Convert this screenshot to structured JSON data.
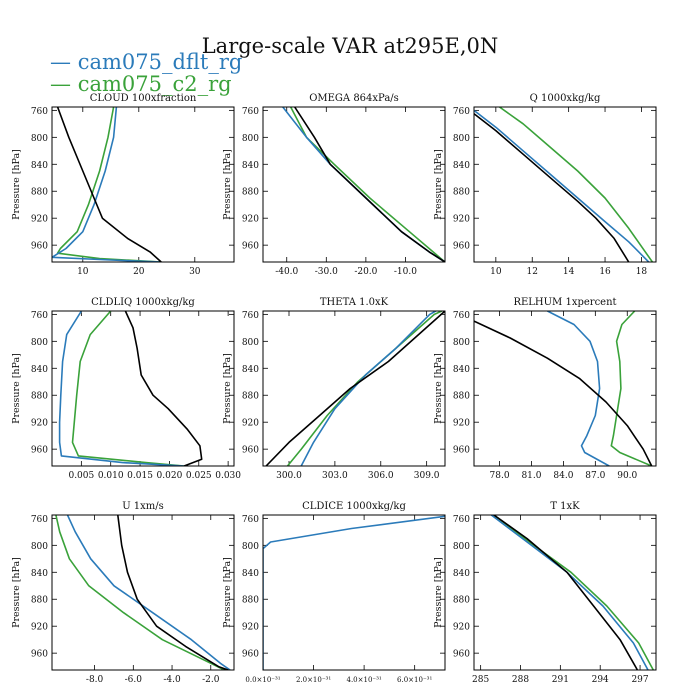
{
  "title": "Large-scale VAR at295E,0N",
  "legend": [
    {
      "label": "cam075_dflt_rg",
      "color": "#2b7bba"
    },
    {
      "label": "cam075_c2_rg",
      "color": "#3aa23a"
    }
  ],
  "colors": {
    "black": "#000000",
    "blue": "#2b7bba",
    "green": "#3aa23a"
  },
  "ylabel": "Pressure [hPa]",
  "pressure_ticks": [
    "760",
    "800",
    "840",
    "880",
    "920",
    "960"
  ],
  "chart_data": [
    {
      "type": "line",
      "title": "CLOUD  100xfraction",
      "xlim": [
        4.5,
        37
      ],
      "ylim": [
        985,
        755
      ],
      "xticks": [
        10,
        20,
        30
      ],
      "xtick_labels": [
        "10",
        "20",
        "30"
      ],
      "series": [
        {
          "name": "black",
          "x": [
            5.5,
            7.5,
            10,
            12,
            13.5,
            18,
            22,
            24
          ],
          "y": [
            755,
            800,
            850,
            890,
            920,
            950,
            970,
            985
          ]
        },
        {
          "name": "cam075_dflt_rg",
          "x": [
            16,
            15.5,
            14,
            12,
            10,
            7,
            4.5,
            15,
            24
          ],
          "y": [
            755,
            800,
            850,
            900,
            940,
            965,
            978,
            982,
            985
          ]
        },
        {
          "name": "cam075_c2_rg",
          "x": [
            15.5,
            14.5,
            13,
            11,
            9,
            6,
            5.5,
            13,
            24
          ],
          "y": [
            755,
            800,
            850,
            900,
            940,
            965,
            972,
            980,
            985
          ]
        }
      ]
    },
    {
      "type": "line",
      "title": "OMEGA  864xPa/s",
      "xlim": [
        -46,
        0
      ],
      "ylim": [
        985,
        755
      ],
      "xticks": [
        -40,
        -30,
        -20,
        -10
      ],
      "xtick_labels": [
        "-40.0",
        "-30.0",
        "-20.0",
        "-10.0"
      ],
      "series": [
        {
          "name": "black",
          "x": [
            -38,
            -33,
            -29,
            -20,
            -11,
            -4,
            0
          ],
          "y": [
            755,
            800,
            840,
            890,
            940,
            970,
            985
          ]
        },
        {
          "name": "cam075_dflt_rg",
          "x": [
            -41,
            -35,
            -29,
            -20,
            -11,
            -4,
            0
          ],
          "y": [
            755,
            800,
            840,
            890,
            940,
            970,
            985
          ]
        },
        {
          "name": "cam075_c2_rg",
          "x": [
            -39,
            -35,
            -28,
            -19,
            -9,
            -3,
            0
          ],
          "y": [
            755,
            800,
            840,
            890,
            940,
            970,
            985
          ]
        }
      ]
    },
    {
      "type": "line",
      "title": "Q  1000xkg/kg",
      "xlim": [
        8.8,
        18.8
      ],
      "ylim": [
        985,
        755
      ],
      "xticks": [
        10,
        12,
        14,
        16,
        18
      ],
      "xtick_labels": [
        "10",
        "12",
        "14",
        "16",
        "18"
      ],
      "series": [
        {
          "name": "black",
          "x": [
            8.8,
            10,
            11.5,
            13,
            14.5,
            15.5,
            16.5,
            17.3
          ],
          "y": [
            765,
            790,
            825,
            860,
            895,
            920,
            950,
            985
          ]
        },
        {
          "name": "cam075_dflt_rg",
          "x": [
            8.8,
            10,
            11.5,
            13,
            14.5,
            16,
            17.3,
            18.4
          ],
          "y": [
            760,
            785,
            820,
            855,
            890,
            925,
            955,
            985
          ]
        },
        {
          "name": "cam075_c2_rg",
          "x": [
            10.2,
            11.5,
            13,
            14.5,
            16,
            17.3,
            18.6
          ],
          "y": [
            755,
            780,
            815,
            850,
            890,
            935,
            985
          ]
        }
      ]
    },
    {
      "type": "line",
      "title": "CLDLIQ  1000xkg/kg",
      "xlim": [
        0,
        0.031
      ],
      "ylim": [
        985,
        755
      ],
      "xticks": [
        0.005,
        0.01,
        0.015,
        0.02,
        0.025,
        0.03
      ],
      "xtick_labels": [
        "0.005",
        "0.010",
        "0.015",
        "0.020",
        "0.025",
        "0.030"
      ],
      "series": [
        {
          "name": "black",
          "x": [
            0.0125,
            0.0138,
            0.0145,
            0.0152,
            0.0172,
            0.0198,
            0.023,
            0.0252,
            0.0255,
            0.0225
          ],
          "y": [
            755,
            780,
            810,
            850,
            880,
            900,
            930,
            955,
            975,
            985
          ]
        },
        {
          "name": "cam075_dflt_rg",
          "x": [
            0.005,
            0.0025,
            0.0018,
            0.0015,
            0.0013,
            0.0013,
            0.0016,
            0.012,
            0.0225
          ],
          "y": [
            755,
            790,
            830,
            880,
            920,
            950,
            970,
            980,
            985
          ]
        },
        {
          "name": "cam075_c2_rg",
          "x": [
            0.01,
            0.0065,
            0.0048,
            0.0042,
            0.0038,
            0.0035,
            0.0045,
            0.016,
            0.0225
          ],
          "y": [
            755,
            790,
            830,
            880,
            920,
            950,
            970,
            980,
            985
          ]
        }
      ]
    },
    {
      "type": "line",
      "title": "THETA  1.0xK",
      "xlim": [
        298.3,
        310.2
      ],
      "ylim": [
        985,
        755
      ],
      "xticks": [
        300,
        303,
        306,
        309
      ],
      "xtick_labels": [
        "300.0",
        "303.0",
        "306.0",
        "309.0"
      ],
      "series": [
        {
          "name": "black",
          "x": [
            298.5,
            300,
            302,
            304,
            306.5,
            310.2
          ],
          "y": [
            985,
            950,
            910,
            870,
            830,
            755
          ]
        },
        {
          "name": "cam075_dflt_rg",
          "x": [
            300.8,
            301.6,
            303,
            305,
            307,
            309.2,
            309.6
          ],
          "y": [
            985,
            950,
            900,
            850,
            810,
            760,
            755
          ]
        },
        {
          "name": "cam075_c2_rg",
          "x": [
            299.9,
            300.8,
            302.5,
            304.5,
            307,
            309.5,
            310
          ],
          "y": [
            985,
            960,
            910,
            860,
            810,
            760,
            755
          ]
        }
      ]
    },
    {
      "type": "line",
      "title": "RELHUM  1xpercent",
      "xlim": [
        75.6,
        92.7
      ],
      "ylim": [
        985,
        755
      ],
      "xticks": [
        78,
        81,
        84,
        87,
        90
      ],
      "xtick_labels": [
        "78.0",
        "81.0",
        "84.0",
        "87.0",
        "90.0"
      ],
      "series": [
        {
          "name": "black",
          "x": [
            75.6,
            79,
            82.5,
            85.5,
            88,
            90,
            91.5,
            92.3
          ],
          "y": [
            770,
            795,
            825,
            855,
            890,
            925,
            960,
            985
          ]
        },
        {
          "name": "cam075_dflt_rg",
          "x": [
            82.5,
            85,
            86.5,
            87.2,
            87.4,
            87,
            86.2,
            85.7,
            86,
            88.3
          ],
          "y": [
            755,
            775,
            800,
            830,
            870,
            910,
            940,
            955,
            965,
            985
          ]
        },
        {
          "name": "cam075_c2_rg",
          "x": [
            90.7,
            89.5,
            89,
            89.3,
            89.4,
            89,
            88.7,
            88.5,
            89.3,
            92.3
          ],
          "y": [
            755,
            775,
            800,
            830,
            870,
            910,
            940,
            955,
            965,
            985
          ]
        }
      ]
    },
    {
      "type": "line",
      "title": "U  1xm/s",
      "xlim": [
        -10.2,
        -0.8
      ],
      "ylim": [
        985,
        755
      ],
      "xticks": [
        -8,
        -6,
        -4,
        -2
      ],
      "xtick_labels": [
        "-8.0",
        "-6.0",
        "-4.0",
        "-2.0"
      ],
      "series": [
        {
          "name": "black",
          "x": [
            -6.8,
            -6.6,
            -6.3,
            -5.8,
            -4.8,
            -3.3,
            -1.6,
            -1.1
          ],
          "y": [
            755,
            800,
            840,
            880,
            920,
            950,
            980,
            985
          ]
        },
        {
          "name": "cam075_dflt_rg",
          "x": [
            -9.4,
            -9,
            -8.2,
            -7,
            -5,
            -3,
            -1.5,
            -1
          ],
          "y": [
            755,
            780,
            820,
            860,
            900,
            940,
            975,
            985
          ]
        },
        {
          "name": "cam075_c2_rg",
          "x": [
            -10,
            -9.8,
            -9.3,
            -8.3,
            -6.5,
            -4.5,
            -2,
            -1.3
          ],
          "y": [
            755,
            780,
            820,
            860,
            900,
            940,
            975,
            985
          ]
        }
      ]
    },
    {
      "type": "line",
      "title": "CLDICE  1000xkg/kg",
      "xlim": [
        0,
        7.2e-31
      ],
      "ylim": [
        985,
        755
      ],
      "xticks": [
        0,
        2e-31,
        4e-31,
        6e-31
      ],
      "xtick_labels": [
        "0.0×10⁻³¹",
        "2.0×10⁻³¹",
        "4.0×10⁻³¹",
        "6.0×10⁻³¹"
      ],
      "series": [
        {
          "name": "cam075_dflt_rg",
          "x": [
            0,
            0,
            3e-32,
            3.5e-31,
            7.2e-31
          ],
          "y": [
            985,
            805,
            795,
            775,
            757
          ]
        }
      ]
    },
    {
      "type": "line",
      "title": "T  1xK",
      "xlim": [
        284.5,
        298.2
      ],
      "ylim": [
        985,
        755
      ],
      "xticks": [
        285,
        288,
        291,
        294,
        297
      ],
      "xtick_labels": [
        "285",
        "288",
        "291",
        "294",
        "297"
      ],
      "series": [
        {
          "name": "black",
          "x": [
            286,
            288.5,
            291.5,
            293.5,
            295.5,
            296.8
          ],
          "y": [
            755,
            790,
            840,
            890,
            940,
            985
          ]
        },
        {
          "name": "cam075_dflt_rg",
          "x": [
            285.8,
            288.5,
            291.5,
            294.2,
            296.5,
            297.6
          ],
          "y": [
            755,
            795,
            840,
            890,
            945,
            985
          ]
        },
        {
          "name": "cam075_c2_rg",
          "x": [
            286,
            289,
            291.8,
            294.5,
            296.9,
            298
          ],
          "y": [
            755,
            800,
            840,
            890,
            945,
            985
          ]
        }
      ]
    }
  ]
}
